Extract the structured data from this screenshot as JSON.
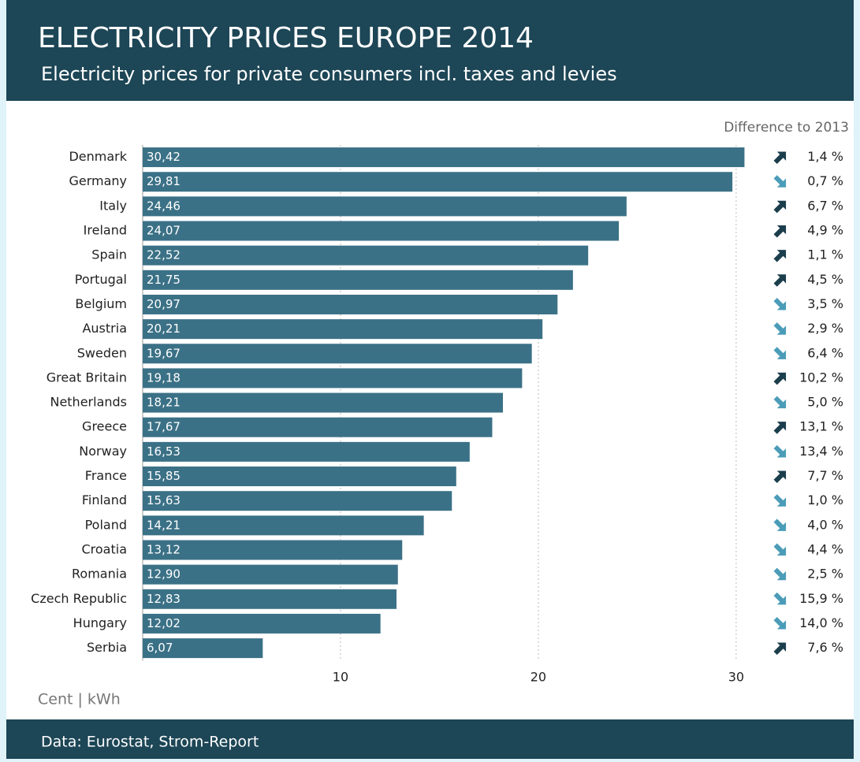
{
  "chart_data": {
    "type": "barh",
    "title": "ELECTRICITY PRICES EUROPE 2014",
    "subtitle": "Electricity prices for private consumers incl. taxes and levies",
    "difference_title": "Difference to 2013",
    "x_label": "Cent | kWh",
    "source": "Data: Eurostat, Strom-Report",
    "categories": [
      "Denmark",
      "Germany",
      "Italy",
      "Ireland",
      "Spain",
      "Portugal",
      "Belgium",
      "Austria",
      "Sweden",
      "Great Britain",
      "Netherlands",
      "Greece",
      "Norway",
      "France",
      "Finland",
      "Poland",
      "Croatia",
      "Romania",
      "Czech Republic",
      "Hungary",
      "Serbia"
    ],
    "values": [
      30.42,
      29.81,
      24.46,
      24.07,
      22.52,
      21.75,
      20.97,
      20.21,
      19.67,
      19.18,
      18.21,
      17.67,
      16.53,
      15.85,
      15.63,
      14.21,
      13.12,
      12.9,
      12.83,
      12.02,
      6.07
    ],
    "value_labels": [
      "30,42",
      "29,81",
      "24,46",
      "24,07",
      "22,52",
      "21,75",
      "20,97",
      "20,21",
      "19,67",
      "19,18",
      "18,21",
      "17,67",
      "16,53",
      "15,85",
      "15,63",
      "14,21",
      "13,12",
      "12,90",
      "12,83",
      "12,02",
      "6,07"
    ],
    "difference_labels": [
      "1,4 %",
      "0,7 %",
      "6,7 %",
      "4,9 %",
      "1,1 %",
      "4,5 %",
      "3,5 %",
      "2,9 %",
      "6,4 %",
      "10,2 %",
      "5,0 %",
      "13,1 %",
      "13,4 %",
      "7,7 %",
      "1,0 %",
      "4,0 %",
      "4,4 %",
      "2,5 %",
      "15,9 %",
      "14,0 %",
      "7,6 %"
    ],
    "difference_directions": [
      "up",
      "down",
      "up",
      "up",
      "up",
      "up",
      "down",
      "down",
      "down",
      "up",
      "down",
      "up",
      "down",
      "up",
      "down",
      "down",
      "down",
      "down",
      "down",
      "down",
      "up"
    ],
    "color": "#3b7186",
    "up_color": "#1b3e4c",
    "down_color": "#4b9cb8",
    "xlim": [
      0,
      31
    ],
    "xticks": [
      10,
      20,
      30
    ],
    "grid": true
  }
}
